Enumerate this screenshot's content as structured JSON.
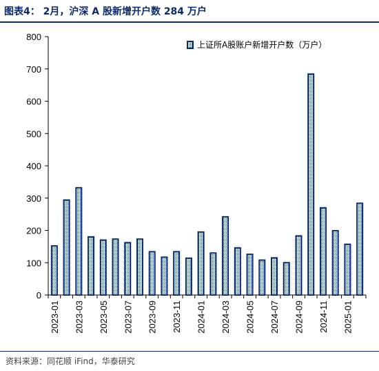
{
  "figure": {
    "title": "图表4： 2月，沪深 A 股新增开户数 284 万户",
    "source": "资料来源：同花顺 iFind，华泰研究"
  },
  "colors": {
    "bar_border": "#0a2a6b",
    "bar_fill_dots": "#0a2a6b",
    "axis": "#000000",
    "rule": "#0a2a6b"
  },
  "chart_data": {
    "type": "bar",
    "title": "",
    "xlabel": "",
    "ylabel": "",
    "ylim": [
      0,
      800
    ],
    "yticks": [
      0,
      100,
      200,
      300,
      400,
      500,
      600,
      700,
      800
    ],
    "grid": false,
    "legend_position": "top-right",
    "categories": [
      "2023-01",
      "2023-02",
      "2023-03",
      "2023-04",
      "2023-05",
      "2023-06",
      "2023-07",
      "2023-08",
      "2023-09",
      "2023-10",
      "2023-11",
      "2023-12",
      "2024-01",
      "2024-02",
      "2024-03",
      "2024-04",
      "2024-05",
      "2024-06",
      "2024-07",
      "2024-08",
      "2024-09",
      "2024-10",
      "2024-11",
      "2024-12",
      "2025-01",
      "2025-02"
    ],
    "tick_labels": [
      "2023-01",
      "2023-03",
      "2023-05",
      "2023-07",
      "2023-09",
      "2023-11",
      "2024-01",
      "2024-03",
      "2024-05",
      "2024-07",
      "2024-09",
      "2024-11",
      "2025-01"
    ],
    "series": [
      {
        "name": "上证所A股账户新增开户数（万户）",
        "values": [
          152,
          294,
          332,
          180,
          170,
          173,
          162,
          173,
          134,
          117,
          134,
          114,
          195,
          130,
          242,
          146,
          126,
          108,
          115,
          100,
          183,
          684,
          270,
          199,
          157,
          284
        ]
      }
    ]
  }
}
